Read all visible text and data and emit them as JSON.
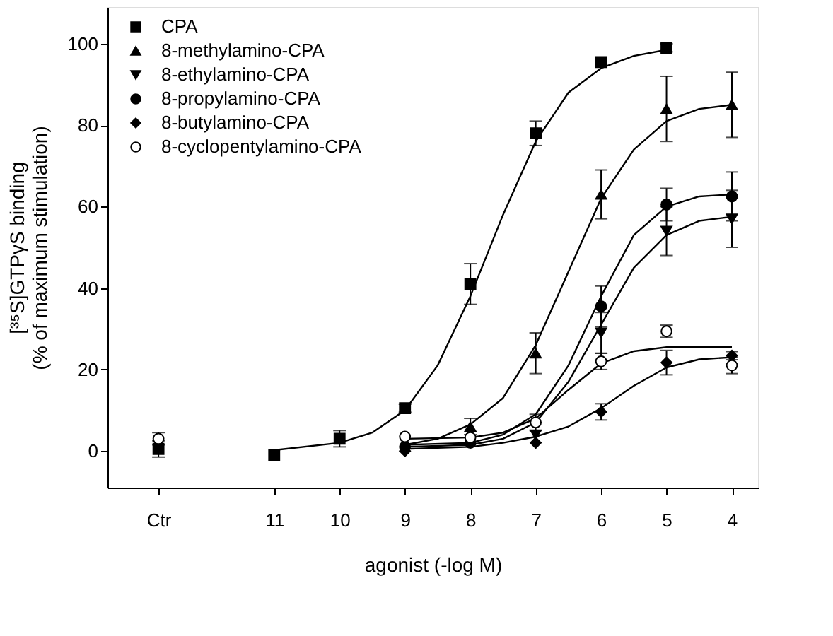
{
  "chart_data": {
    "type": "scatter",
    "xlabel": "agonist (-log M)",
    "ylabel": "[³⁵S]GTPγS binding\n(% of maximum stimulation)",
    "xlim": [
      13.55,
      3.6
    ],
    "xticks": [
      {
        "value": 12.77,
        "label": "Ctr"
      },
      11,
      10,
      9,
      8,
      7,
      6,
      5,
      4
    ],
    "ylim": [
      -9,
      109
    ],
    "yticks": [
      0,
      20,
      40,
      60,
      80,
      100
    ],
    "grid": false,
    "legend": "top left",
    "series": [
      {
        "name": "CPA",
        "marker": "square",
        "color": "#000000",
        "x": [
          12.77,
          11,
          10,
          9,
          8,
          7,
          6,
          5
        ],
        "values": [
          0.5,
          -1,
          3,
          10.5,
          41,
          78,
          95.5,
          99
        ],
        "errors": [
          2,
          null,
          2,
          1,
          5,
          3,
          null,
          1
        ]
      },
      {
        "name": "8-methylamino-CPA",
        "marker": "triangle",
        "color": "#000000",
        "x": [
          8,
          7,
          6,
          5,
          4
        ],
        "values": [
          6,
          24,
          63,
          84,
          85
        ],
        "errors": [
          2,
          5,
          6,
          8,
          8
        ]
      },
      {
        "name": "8-ethylamino-CPA",
        "marker": "triangle_down",
        "color": "#000000",
        "x": [
          7,
          6,
          5,
          4
        ],
        "values": [
          4,
          29,
          54,
          57
        ],
        "errors": [
          null,
          5,
          6,
          7
        ]
      },
      {
        "name": "8-propylamino-CPA",
        "marker": "circle",
        "color": "#000000",
        "x": [
          9,
          8,
          6,
          5,
          4
        ],
        "values": [
          1,
          2,
          35.5,
          60.5,
          62.5
        ],
        "errors": [
          null,
          null,
          5,
          4,
          6
        ]
      },
      {
        "name": "8-butylamino-CPA",
        "marker": "diamond",
        "color": "#000000",
        "x": [
          9,
          7,
          6,
          5,
          4
        ],
        "values": [
          0,
          2,
          9.6,
          21.7,
          23.4
        ],
        "errors": [
          null,
          null,
          2,
          3,
          1
        ]
      },
      {
        "name": "8-cyclopentylamino-CPA",
        "marker": "circle",
        "color": "#ffffff",
        "x": [
          12.77,
          9,
          8,
          7,
          6,
          5,
          4
        ],
        "values": [
          3,
          3.5,
          3.3,
          7,
          22,
          29.4,
          21
        ],
        "errors": [
          1.5,
          null,
          null,
          2,
          2,
          1.5,
          2
        ]
      },
      {
        "type": "line",
        "marker": "none",
        "line_style": "solid",
        "color": "#000000",
        "x": [
          11,
          10,
          9.5,
          9,
          8.5,
          8,
          7.5,
          7,
          6.5,
          6,
          5.5,
          5
        ],
        "values": [
          0.2,
          2,
          4.5,
          10,
          21,
          38,
          58,
          76,
          88,
          94,
          97,
          98.5
        ]
      },
      {
        "type": "line",
        "marker": "none",
        "line_style": "solid",
        "color": "#000000",
        "x": [
          9,
          8.5,
          8,
          7.5,
          7,
          6.5,
          6,
          5.5,
          5,
          4.5,
          4
        ],
        "values": [
          1.5,
          3,
          6.5,
          13,
          26,
          44,
          62,
          74,
          81,
          84,
          85
        ]
      },
      {
        "type": "line",
        "marker": "none",
        "line_style": "solid",
        "color": "#000000",
        "x": [
          9,
          8,
          7.5,
          7,
          6.5,
          6,
          5.5,
          5,
          4.5,
          4
        ],
        "values": [
          1,
          1.5,
          3,
          7,
          17,
          31,
          45,
          53,
          56.5,
          57.5
        ]
      },
      {
        "type": "line",
        "marker": "none",
        "line_style": "solid",
        "color": "#000000",
        "x": [
          9,
          8,
          7.5,
          7,
          6.5,
          6,
          5.5,
          5,
          4.5,
          4
        ],
        "values": [
          1.5,
          2,
          4,
          9,
          21,
          38,
          53,
          60,
          62.5,
          63
        ]
      },
      {
        "type": "line",
        "marker": "none",
        "line_style": "solid",
        "color": "#000000",
        "x": [
          9,
          8,
          7.5,
          7,
          6.5,
          6,
          5.5,
          5,
          4.5,
          4
        ],
        "values": [
          0.5,
          1,
          2,
          3.5,
          6,
          10.5,
          16,
          20.5,
          22.5,
          23
        ]
      },
      {
        "type": "line",
        "marker": "none",
        "line_style": "solid",
        "color": "#000000",
        "x": [
          9,
          8,
          7.5,
          7,
          6.5,
          6,
          5.5,
          5,
          4
        ],
        "values": [
          3,
          3.3,
          4.5,
          8,
          15,
          21.5,
          24.5,
          25.5,
          25.5
        ]
      }
    ]
  }
}
